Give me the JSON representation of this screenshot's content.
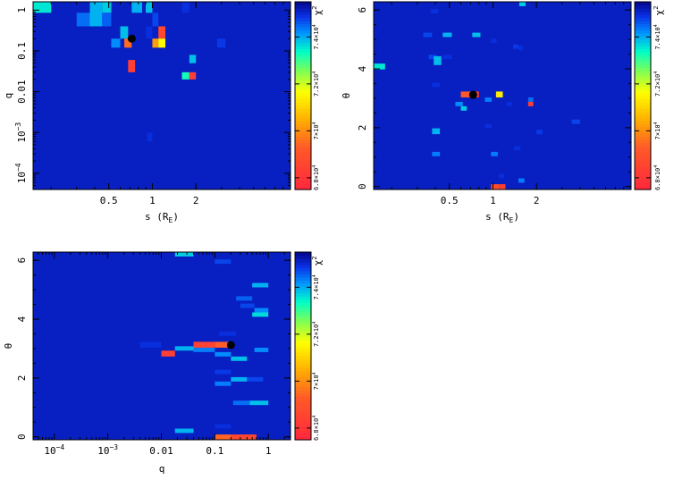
{
  "chart_data": [
    {
      "type": "heatmap",
      "panel": "s-q",
      "xlabel": "s (R_E)",
      "ylabel": "q",
      "x_scale": "log",
      "y_scale": "log",
      "xlim": [
        0.15,
        9.0
      ],
      "ylim": [
        4e-05,
        1.6
      ],
      "x_ticks": [
        {
          "v": 0.5,
          "label": "0.5"
        },
        {
          "v": 1,
          "label": "1"
        },
        {
          "v": 2,
          "label": "2"
        }
      ],
      "y_ticks": [
        {
          "v": 0.0001,
          "label": "10",
          "exp": "−4"
        },
        {
          "v": 0.001,
          "label": "10",
          "exp": "−3"
        },
        {
          "v": 0.01,
          "label": "0.01"
        },
        {
          "v": 0.1,
          "label": "0.1"
        },
        {
          "v": 1,
          "label": "1"
        }
      ],
      "colorbar": {
        "label": "χ",
        "label_exp": "2",
        "ticks": [
          {
            "v": 68000,
            "label": "6.8×10",
            "exp": "4"
          },
          {
            "v": 70000,
            "label": "7×10",
            "exp": "4"
          },
          {
            "v": 72000,
            "label": "7.2×10",
            "exp": "4"
          },
          {
            "v": 74000,
            "label": "7.4×10",
            "exp": "4"
          }
        ],
        "range": [
          67500,
          75500
        ]
      },
      "background_value": 75200,
      "best_fit": {
        "x": 0.72,
        "y": 0.2
      },
      "cells": [
        {
          "x": [
            0.15,
            0.2
          ],
          "y": [
            0.86,
            1.6
          ],
          "v": 73600
        },
        {
          "x": [
            0.3,
            0.37
          ],
          "y": [
            0.4,
            0.86
          ],
          "v": 74500
        },
        {
          "x": [
            0.37,
            0.45
          ],
          "y": [
            0.4,
            1.6
          ],
          "v": 74000
        },
        {
          "x": [
            0.45,
            0.52
          ],
          "y": [
            0.86,
            1.6
          ],
          "v": 73800
        },
        {
          "x": [
            0.45,
            0.52
          ],
          "y": [
            0.4,
            0.86
          ],
          "v": 74600
        },
        {
          "x": [
            0.52,
            0.6
          ],
          "y": [
            0.12,
            0.2
          ],
          "v": 74300
        },
        {
          "x": [
            0.6,
            0.68
          ],
          "y": [
            0.2,
            0.4
          ],
          "v": 73900
        },
        {
          "x": [
            0.64,
            0.72
          ],
          "y": [
            0.12,
            0.2
          ],
          "v": 69500
        },
        {
          "x": [
            0.72,
            0.85
          ],
          "y": [
            0.86,
            1.6
          ],
          "v": 74000
        },
        {
          "x": [
            0.68,
            0.76
          ],
          "y": [
            0.03,
            0.06
          ],
          "v": 68300
        },
        {
          "x": [
            0.9,
            1.0
          ],
          "y": [
            0.86,
            1.6
          ],
          "v": 73900
        },
        {
          "x": [
            0.9,
            1.0
          ],
          "y": [
            0.2,
            0.4
          ],
          "v": 75000
        },
        {
          "x": [
            1.0,
            1.1
          ],
          "y": [
            0.4,
            0.86
          ],
          "v": 74800
        },
        {
          "x": [
            1.0,
            1.1
          ],
          "y": [
            0.12,
            0.2
          ],
          "v": 70200
        },
        {
          "x": [
            1.1,
            1.23
          ],
          "y": [
            0.2,
            0.4
          ],
          "v": 68600
        },
        {
          "x": [
            1.1,
            1.23
          ],
          "y": [
            0.12,
            0.2
          ],
          "v": 71600
        },
        {
          "x": [
            1.6,
            1.8
          ],
          "y": [
            0.86,
            1.6
          ],
          "v": 75000
        },
        {
          "x": [
            1.8,
            2.0
          ],
          "y": [
            0.05,
            0.08
          ],
          "v": 73900
        },
        {
          "x": [
            1.6,
            1.8
          ],
          "y": [
            0.02,
            0.03
          ],
          "v": 73300
        },
        {
          "x": [
            1.8,
            2.0
          ],
          "y": [
            0.02,
            0.03
          ],
          "v": 68300
        },
        {
          "x": [
            2.8,
            3.2
          ],
          "y": [
            0.12,
            0.2
          ],
          "v": 74900
        },
        {
          "x": [
            0.92,
            1.0
          ],
          "y": [
            0.0006,
            0.001
          ],
          "v": 75000
        }
      ]
    },
    {
      "type": "heatmap",
      "panel": "s-theta",
      "xlabel": "s (R_E)",
      "ylabel": "θ",
      "x_scale": "log",
      "y_scale": "linear",
      "xlim": [
        0.15,
        9.0
      ],
      "ylim": [
        -0.1,
        6.28
      ],
      "x_ticks": [
        {
          "v": 0.5,
          "label": "0.5"
        },
        {
          "v": 1,
          "label": "1"
        },
        {
          "v": 2,
          "label": "2"
        }
      ],
      "y_ticks": [
        {
          "v": 0,
          "label": "0"
        },
        {
          "v": 2,
          "label": "2"
        },
        {
          "v": 4,
          "label": "4"
        },
        {
          "v": 6,
          "label": "6"
        }
      ],
      "colorbar": {
        "label": "χ",
        "label_exp": "2",
        "ticks": [
          {
            "v": 68000,
            "label": "6.8×10",
            "exp": "4"
          },
          {
            "v": 70000,
            "label": "7×10",
            "exp": "4"
          },
          {
            "v": 72000,
            "label": "7.2×10",
            "exp": "4"
          },
          {
            "v": 74000,
            "label": "7.4×10",
            "exp": "4"
          }
        ],
        "range": [
          67500,
          75500
        ]
      },
      "background_value": 75200,
      "best_fit": {
        "x": 0.73,
        "y": 3.12
      },
      "cells": [
        {
          "x": [
            0.15,
            0.18
          ],
          "y": [
            3.98,
            4.18
          ],
          "v": 73600
        },
        {
          "x": [
            0.33,
            0.38
          ],
          "y": [
            5.08,
            5.23
          ],
          "v": 74800
        },
        {
          "x": [
            0.37,
            0.42
          ],
          "y": [
            5.88,
            6.03
          ],
          "v": 75000
        },
        {
          "x": [
            0.36,
            0.41
          ],
          "y": [
            4.33,
            4.48
          ],
          "v": 74800
        },
        {
          "x": [
            0.39,
            0.44
          ],
          "y": [
            4.13,
            4.43
          ],
          "v": 73900
        },
        {
          "x": [
            0.38,
            0.43
          ],
          "y": [
            3.38,
            3.53
          ],
          "v": 75000
        },
        {
          "x": [
            0.45,
            0.52
          ],
          "y": [
            5.08,
            5.23
          ],
          "v": 74000
        },
        {
          "x": [
            0.45,
            0.52
          ],
          "y": [
            4.33,
            4.48
          ],
          "v": 75000
        },
        {
          "x": [
            0.38,
            0.43
          ],
          "y": [
            1.78,
            1.98
          ],
          "v": 74000
        },
        {
          "x": [
            0.38,
            0.43
          ],
          "y": [
            1.03,
            1.18
          ],
          "v": 74400
        },
        {
          "x": [
            0.55,
            0.62
          ],
          "y": [
            2.73,
            2.88
          ],
          "v": 74300
        },
        {
          "x": [
            0.6,
            0.66
          ],
          "y": [
            2.58,
            2.73
          ],
          "v": 73800
        },
        {
          "x": [
            0.6,
            0.72
          ],
          "y": [
            3.03,
            3.23
          ],
          "v": 69200
        },
        {
          "x": [
            0.72,
            0.8
          ],
          "y": [
            3.03,
            3.23
          ],
          "v": 68300
        },
        {
          "x": [
            0.72,
            0.82
          ],
          "y": [
            5.08,
            5.23
          ],
          "v": 73900
        },
        {
          "x": [
            0.88,
            0.98
          ],
          "y": [
            2.88,
            3.03
          ],
          "v": 74400
        },
        {
          "x": [
            0.88,
            0.98
          ],
          "y": [
            1.98,
            2.13
          ],
          "v": 75000
        },
        {
          "x": [
            0.97,
            1.06
          ],
          "y": [
            4.88,
            5.03
          ],
          "v": 75000
        },
        {
          "x": [
            1.05,
            1.17
          ],
          "y": [
            3.03,
            3.23
          ],
          "v": 71400
        },
        {
          "x": [
            0.97,
            1.08
          ],
          "y": [
            1.03,
            1.18
          ],
          "v": 74400
        },
        {
          "x": [
            1.1,
            1.2
          ],
          "y": [
            0.28,
            0.43
          ],
          "v": 75000
        },
        {
          "x": [
            0.97,
            1.1
          ],
          "y": [
            -0.1,
            0.08
          ],
          "v": 68800
        },
        {
          "x": [
            1.1,
            1.22
          ],
          "y": [
            -0.1,
            0.08
          ],
          "v": 68300
        },
        {
          "x": [
            1.24,
            1.36
          ],
          "y": [
            2.73,
            2.88
          ],
          "v": 75000
        },
        {
          "x": [
            1.38,
            1.5
          ],
          "y": [
            4.68,
            4.83
          ],
          "v": 74900
        },
        {
          "x": [
            1.4,
            1.55
          ],
          "y": [
            1.23,
            1.38
          ],
          "v": 75000
        },
        {
          "x": [
            1.5,
            1.62
          ],
          "y": [
            4.63,
            4.78
          ],
          "v": 75000
        },
        {
          "x": [
            1.52,
            1.68
          ],
          "y": [
            6.13,
            6.28
          ],
          "v": 73800
        },
        {
          "x": [
            1.5,
            1.65
          ],
          "y": [
            0.13,
            0.28
          ],
          "v": 74400
        },
        {
          "x": [
            1.75,
            1.9
          ],
          "y": [
            2.88,
            3.03
          ],
          "v": 74500
        },
        {
          "x": [
            1.75,
            1.9
          ],
          "y": [
            2.73,
            2.88
          ],
          "v": 68300
        },
        {
          "x": [
            2.0,
            2.2
          ],
          "y": [
            1.78,
            1.93
          ],
          "v": 74900
        },
        {
          "x": [
            3.5,
            4.0
          ],
          "y": [
            2.13,
            2.28
          ],
          "v": 74800
        }
      ]
    },
    {
      "type": "heatmap",
      "panel": "q-theta",
      "xlabel": "q",
      "ylabel": "θ",
      "x_scale": "log",
      "y_scale": "linear",
      "xlim": [
        4e-05,
        2.6
      ],
      "ylim": [
        -0.1,
        6.28
      ],
      "x_ticks": [
        {
          "v": 0.0001,
          "label": "10",
          "exp": "−4"
        },
        {
          "v": 0.001,
          "label": "10",
          "exp": "−3"
        },
        {
          "v": 0.01,
          "label": "0.01"
        },
        {
          "v": 0.1,
          "label": "0.1"
        },
        {
          "v": 1,
          "label": "1"
        }
      ],
      "y_ticks": [
        {
          "v": 0,
          "label": "0"
        },
        {
          "v": 2,
          "label": "2"
        },
        {
          "v": 4,
          "label": "4"
        },
        {
          "v": 6,
          "label": "6"
        }
      ],
      "colorbar": {
        "label": "χ",
        "label_exp": "2",
        "ticks": [
          {
            "v": 68000,
            "label": "6.8×10",
            "exp": "4"
          },
          {
            "v": 70000,
            "label": "7×10",
            "exp": "4"
          },
          {
            "v": 72000,
            "label": "7.2×10",
            "exp": "4"
          },
          {
            "v": 74000,
            "label": "7.4×10",
            "exp": "4"
          }
        ],
        "range": [
          67500,
          75500
        ]
      },
      "background_value": 75200,
      "best_fit": {
        "x": 0.2,
        "y": 3.12
      },
      "cells": [
        {
          "x": [
            0.018,
            0.04
          ],
          "y": [
            6.13,
            6.28
          ],
          "v": 73800
        },
        {
          "x": [
            0.1,
            0.2
          ],
          "y": [
            5.88,
            6.03
          ],
          "v": 74800
        },
        {
          "x": [
            0.5,
            1.0
          ],
          "y": [
            5.08,
            5.23
          ],
          "v": 74000
        },
        {
          "x": [
            0.25,
            0.5
          ],
          "y": [
            4.63,
            4.78
          ],
          "v": 74600
        },
        {
          "x": [
            0.3,
            0.55
          ],
          "y": [
            4.38,
            4.53
          ],
          "v": 74800
        },
        {
          "x": [
            0.55,
            1.0
          ],
          "y": [
            4.23,
            4.38
          ],
          "v": 74300
        },
        {
          "x": [
            0.5,
            1.0
          ],
          "y": [
            4.08,
            4.23
          ],
          "v": 73700
        },
        {
          "x": [
            0.12,
            0.25
          ],
          "y": [
            3.43,
            3.58
          ],
          "v": 75000
        },
        {
          "x": [
            0.004,
            0.01
          ],
          "y": [
            3.03,
            3.23
          ],
          "v": 75000
        },
        {
          "x": [
            0.01,
            0.018
          ],
          "y": [
            2.73,
            2.93
          ],
          "v": 68300
        },
        {
          "x": [
            0.018,
            0.04
          ],
          "y": [
            2.93,
            3.08
          ],
          "v": 74000
        },
        {
          "x": [
            0.04,
            0.1
          ],
          "y": [
            3.03,
            3.23
          ],
          "v": 68400
        },
        {
          "x": [
            0.1,
            0.2
          ],
          "y": [
            3.03,
            3.23
          ],
          "v": 69300
        },
        {
          "x": [
            0.04,
            0.1
          ],
          "y": [
            2.88,
            3.03
          ],
          "v": 74400
        },
        {
          "x": [
            0.1,
            0.2
          ],
          "y": [
            2.73,
            2.88
          ],
          "v": 74300
        },
        {
          "x": [
            0.2,
            0.4
          ],
          "y": [
            2.58,
            2.73
          ],
          "v": 73900
        },
        {
          "x": [
            0.55,
            1.0
          ],
          "y": [
            2.88,
            3.03
          ],
          "v": 74300
        },
        {
          "x": [
            0.1,
            0.2
          ],
          "y": [
            2.13,
            2.28
          ],
          "v": 74900
        },
        {
          "x": [
            0.2,
            0.4
          ],
          "y": [
            1.88,
            2.03
          ],
          "v": 74000
        },
        {
          "x": [
            0.4,
            0.8
          ],
          "y": [
            1.88,
            2.03
          ],
          "v": 74800
        },
        {
          "x": [
            0.1,
            0.2
          ],
          "y": [
            1.73,
            1.88
          ],
          "v": 74400
        },
        {
          "x": [
            0.22,
            0.45
          ],
          "y": [
            1.08,
            1.23
          ],
          "v": 74500
        },
        {
          "x": [
            0.45,
            1.0
          ],
          "y": [
            1.08,
            1.23
          ],
          "v": 73900
        },
        {
          "x": [
            0.018,
            0.04
          ],
          "y": [
            0.13,
            0.28
          ],
          "v": 74000
        },
        {
          "x": [
            0.1,
            0.2
          ],
          "y": [
            0.28,
            0.43
          ],
          "v": 75000
        },
        {
          "x": [
            0.1,
            0.2
          ],
          "y": [
            -0.1,
            0.08
          ],
          "v": 69400
        },
        {
          "x": [
            0.2,
            0.6
          ],
          "y": [
            -0.1,
            0.08
          ],
          "v": 68600
        }
      ]
    }
  ]
}
